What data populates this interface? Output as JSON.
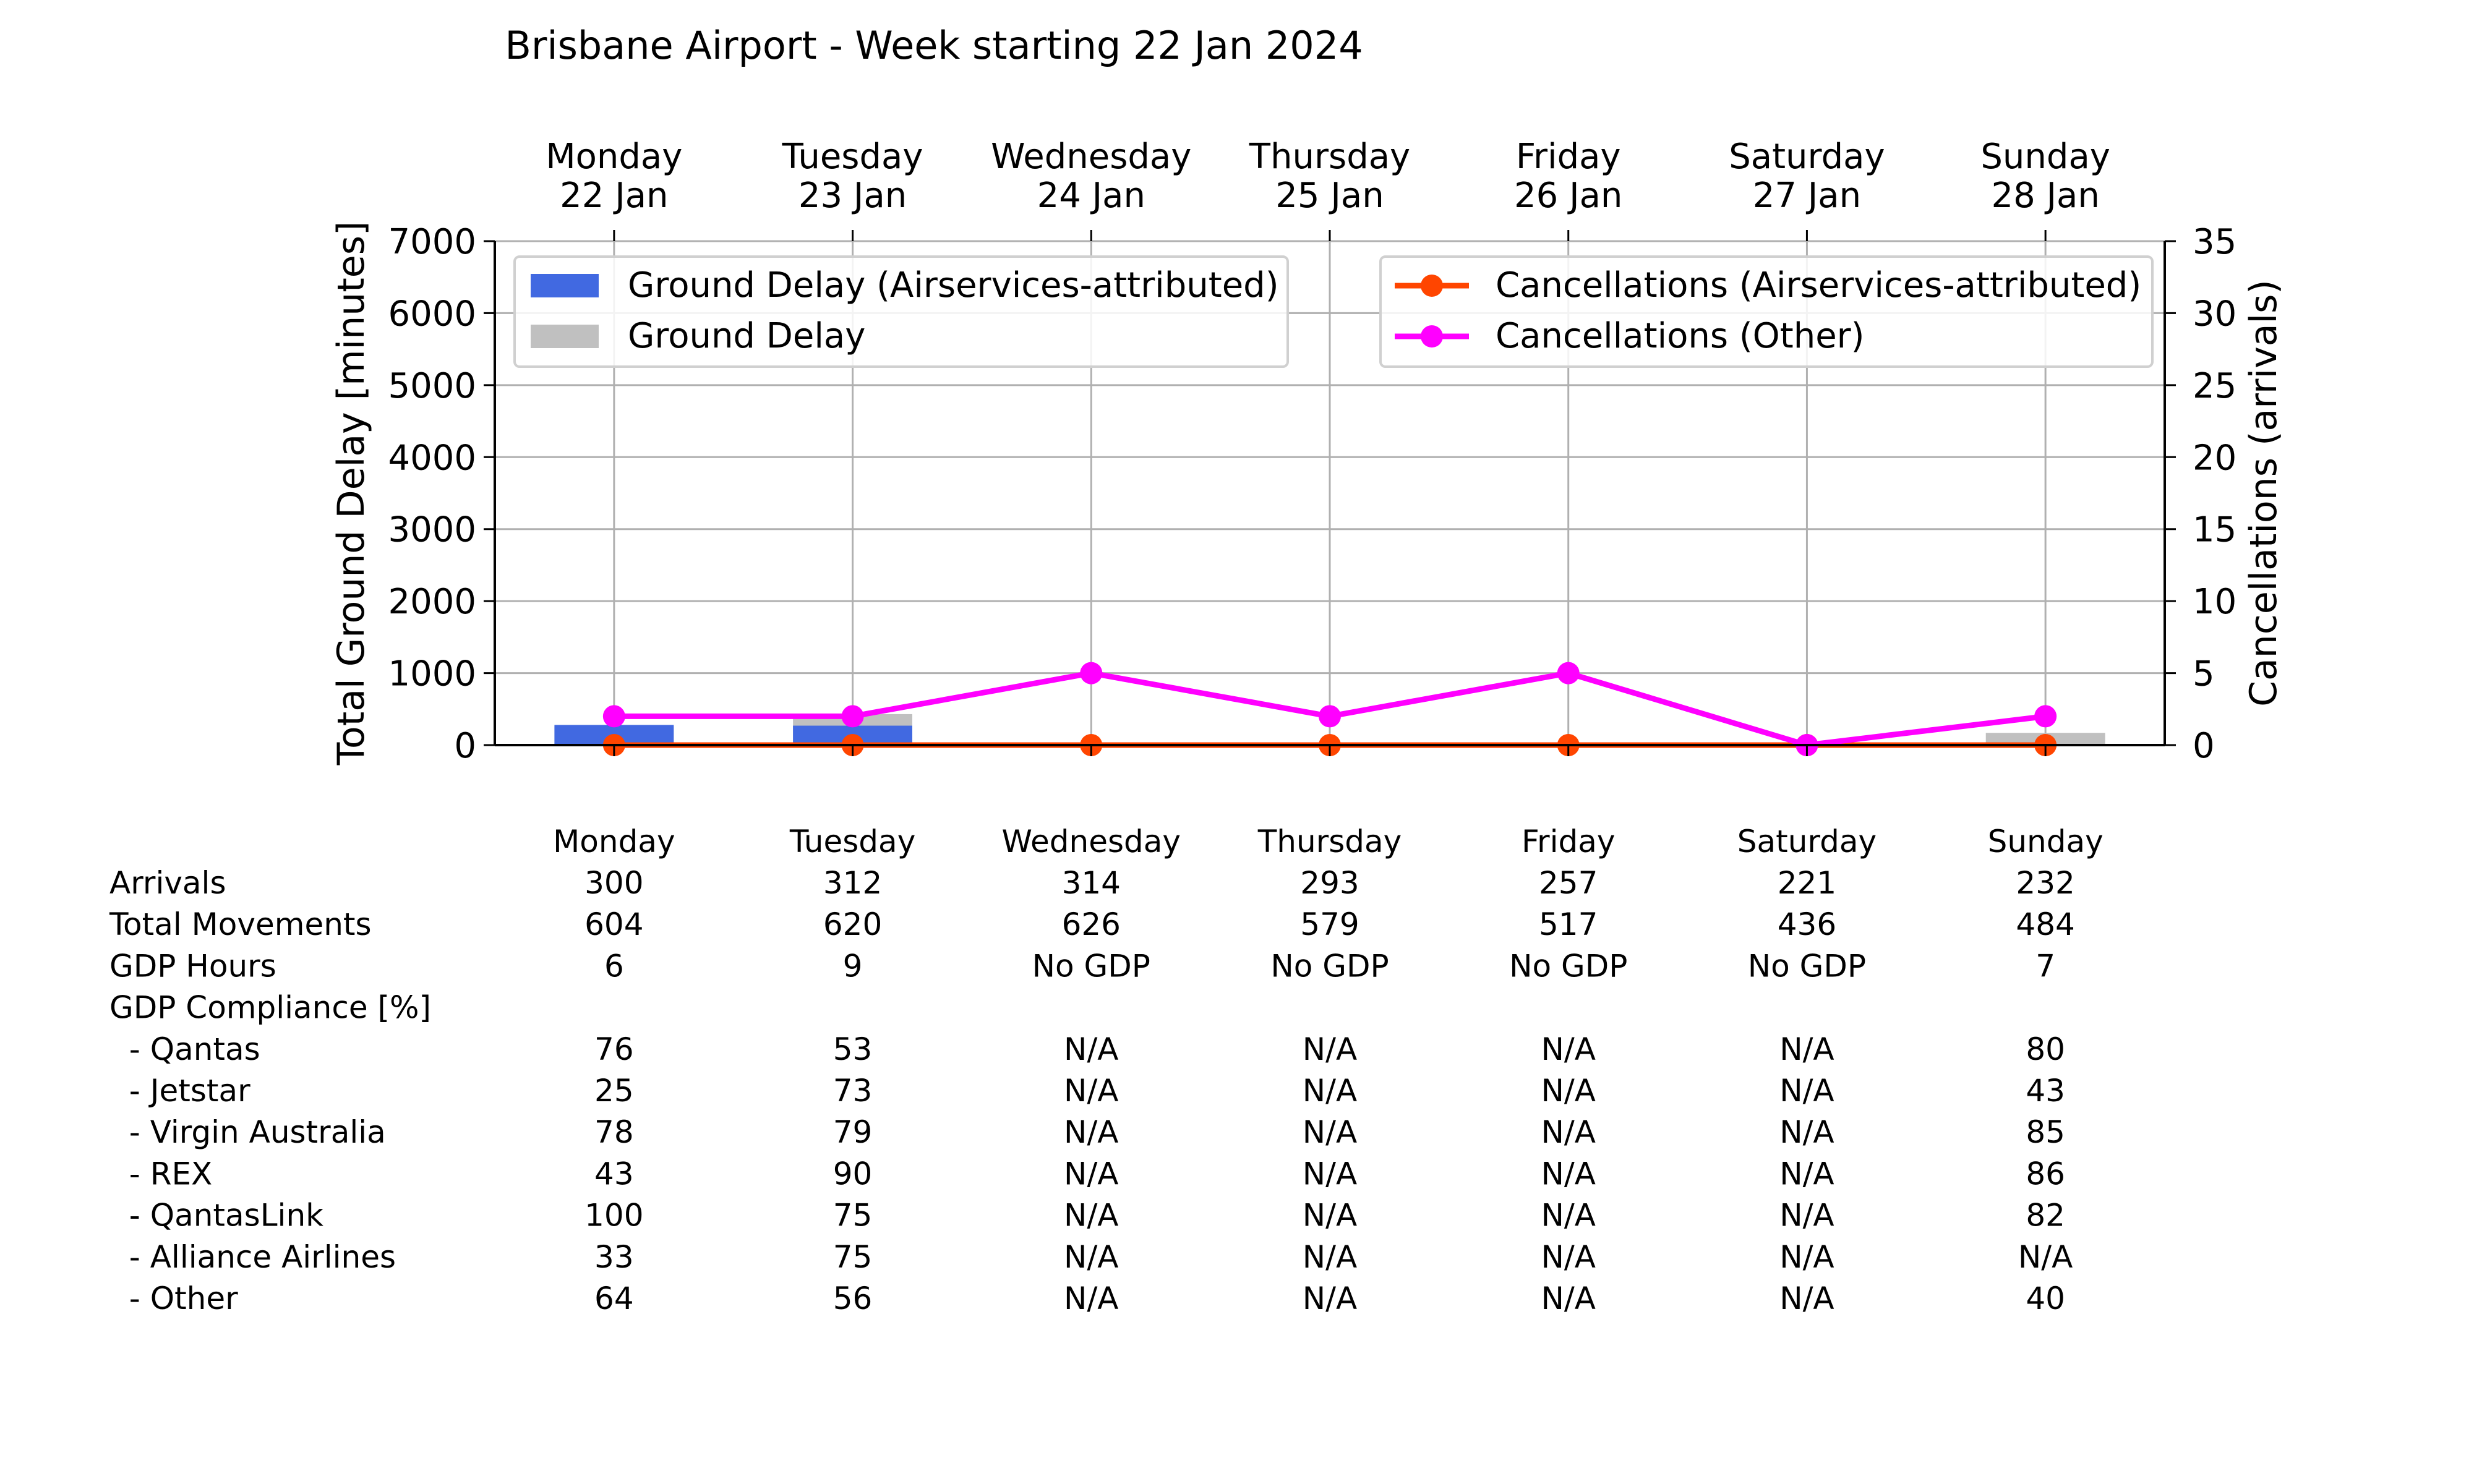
{
  "chart_data": {
    "type": "bar",
    "title": "Brisbane Airport - Week starting 22 Jan 2024",
    "days": [
      {
        "day": "Monday",
        "date": "22 Jan"
      },
      {
        "day": "Tuesday",
        "date": "23 Jan"
      },
      {
        "day": "Wednesday",
        "date": "24 Jan"
      },
      {
        "day": "Thursday",
        "date": "25 Jan"
      },
      {
        "day": "Friday",
        "date": "26 Jan"
      },
      {
        "day": "Saturday",
        "date": "27 Jan"
      },
      {
        "day": "Sunday",
        "date": "28 Jan"
      }
    ],
    "ylabel": "Total Ground Delay [minutes]",
    "y2label": "Cancellations (arrivals)",
    "ylim": [
      0,
      7000
    ],
    "yticks": [
      "0",
      "1000",
      "2000",
      "3000",
      "4000",
      "5000",
      "6000",
      "7000"
    ],
    "y2lim": [
      0,
      35
    ],
    "y2ticks": [
      "0",
      "5",
      "10",
      "15",
      "20",
      "25",
      "30",
      "35"
    ],
    "grid": true,
    "series": [
      {
        "name": "Ground Delay (Airservices-attributed)",
        "kind": "bar",
        "color": "#4169e1",
        "values": [
          280,
          270,
          0,
          0,
          0,
          0,
          0
        ]
      },
      {
        "name": "Ground Delay",
        "kind": "bar",
        "color": "#c0c0c0",
        "values": [
          260,
          430,
          0,
          0,
          0,
          0,
          170
        ]
      },
      {
        "name": "Cancellations (Airservices-attributed)",
        "kind": "line",
        "color": "#ff4500",
        "values": [
          0,
          0,
          0,
          0,
          0,
          0,
          0
        ]
      },
      {
        "name": "Cancellations (Other)",
        "kind": "line",
        "color": "#ff00ff",
        "values": [
          2,
          2,
          5,
          2,
          5,
          0,
          2
        ]
      }
    ],
    "legend_left": "upper-left",
    "legend_right": "upper-right"
  },
  "table": {
    "columns": [
      "Monday",
      "Tuesday",
      "Wednesday",
      "Thursday",
      "Friday",
      "Saturday",
      "Sunday"
    ],
    "rows": [
      {
        "label": "Arrivals",
        "values": [
          "300",
          "312",
          "314",
          "293",
          "257",
          "221",
          "232"
        ]
      },
      {
        "label": "Total Movements",
        "values": [
          "604",
          "620",
          "626",
          "579",
          "517",
          "436",
          "484"
        ]
      },
      {
        "label": "GDP Hours",
        "values": [
          "6",
          "9",
          "No GDP",
          "No GDP",
          "No GDP",
          "No GDP",
          "7"
        ]
      },
      {
        "label": "GDP Compliance [%]",
        "values": [
          "",
          "",
          "",
          "",
          "",
          "",
          ""
        ]
      },
      {
        "label": "  - Qantas",
        "values": [
          "76",
          "53",
          "N/A",
          "N/A",
          "N/A",
          "N/A",
          "80"
        ]
      },
      {
        "label": "  - Jetstar",
        "values": [
          "25",
          "73",
          "N/A",
          "N/A",
          "N/A",
          "N/A",
          "43"
        ]
      },
      {
        "label": "  - Virgin Australia",
        "values": [
          "78",
          "79",
          "N/A",
          "N/A",
          "N/A",
          "N/A",
          "85"
        ]
      },
      {
        "label": "  - REX",
        "values": [
          "43",
          "90",
          "N/A",
          "N/A",
          "N/A",
          "N/A",
          "86"
        ]
      },
      {
        "label": "  - QantasLink",
        "values": [
          "100",
          "75",
          "N/A",
          "N/A",
          "N/A",
          "N/A",
          "82"
        ]
      },
      {
        "label": "  - Alliance Airlines",
        "values": [
          "33",
          "75",
          "N/A",
          "N/A",
          "N/A",
          "N/A",
          "N/A"
        ]
      },
      {
        "label": "  - Other",
        "values": [
          "64",
          "56",
          "N/A",
          "N/A",
          "N/A",
          "N/A",
          "40"
        ]
      }
    ]
  }
}
